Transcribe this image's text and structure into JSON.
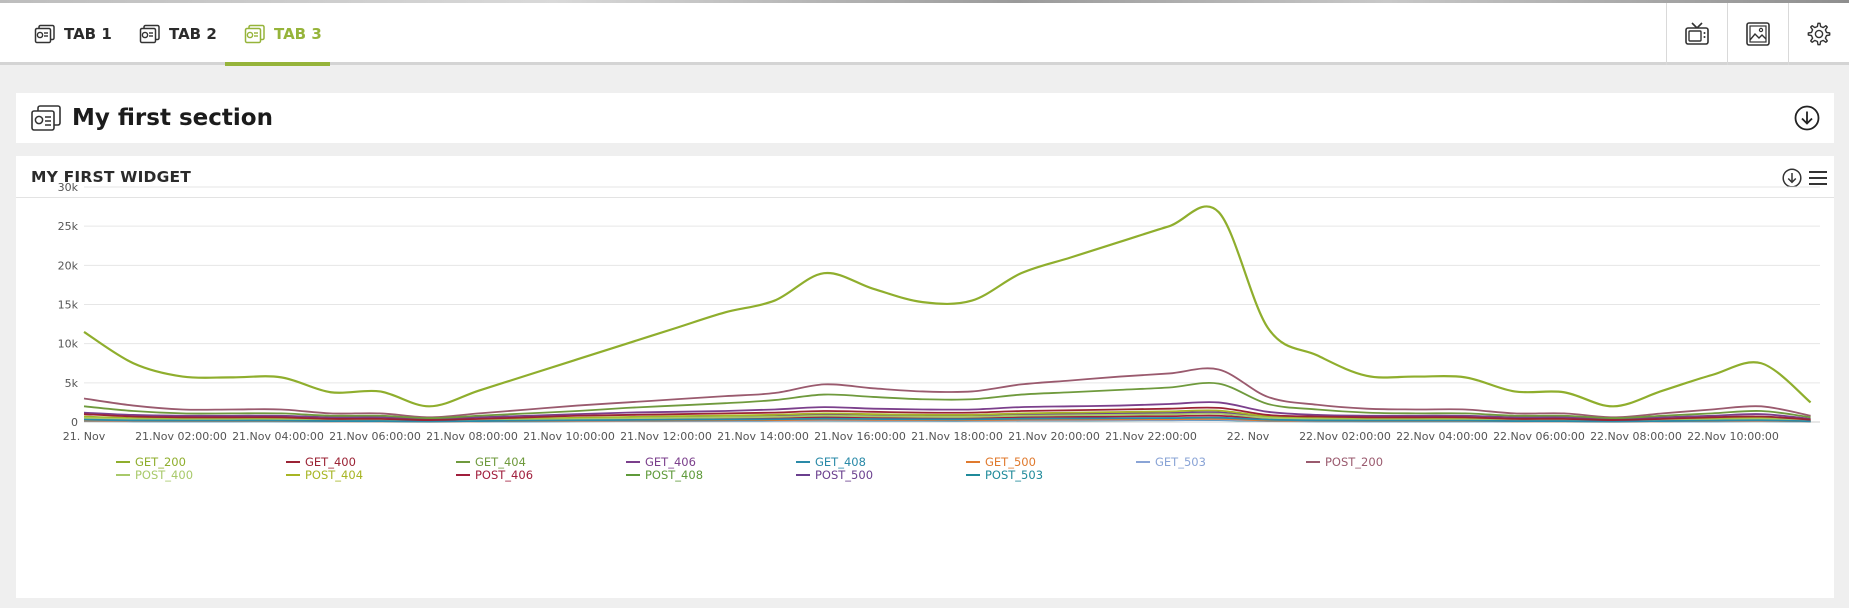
{
  "tabs": [
    {
      "label": "TAB 1",
      "active": false
    },
    {
      "label": "TAB 2",
      "active": false
    },
    {
      "label": "TAB 3",
      "active": true
    }
  ],
  "toolbar_icons": [
    "tv-icon",
    "image-icon",
    "gear-icon"
  ],
  "colors": {
    "accent": "#96b43a"
  },
  "section": {
    "title": "My first section"
  },
  "widget": {
    "title": "MY FIRST WIDGET"
  },
  "chart_data": {
    "type": "line",
    "title": "",
    "xlabel": "",
    "ylabel": "",
    "ylim": [
      0,
      30000
    ],
    "y_ticks": [
      0,
      5000,
      10000,
      15000,
      20000,
      25000,
      30000
    ],
    "y_tick_labels": [
      "0",
      "5k",
      "10k",
      "15k",
      "20k",
      "25k",
      "30k"
    ],
    "x_tick_labels": [
      "21. Nov",
      "21.Nov 02:00:00",
      "21.Nov 04:00:00",
      "21.Nov 06:00:00",
      "21.Nov 08:00:00",
      "21.Nov 10:00:00",
      "21.Nov 12:00:00",
      "21.Nov 14:00:00",
      "21.Nov 16:00:00",
      "21.Nov 18:00:00",
      "21.Nov 20:00:00",
      "21.Nov 22:00:00",
      "22. Nov",
      "22.Nov 02:00:00",
      "22.Nov 04:00:00",
      "22.Nov 06:00:00",
      "22.Nov 08:00:00",
      "22.Nov 10:00:00"
    ],
    "grid": true,
    "legend_position": "bottom",
    "x_hours": [
      0,
      1,
      2,
      3,
      4,
      5,
      6,
      7,
      8,
      9,
      10,
      11,
      12,
      13,
      14,
      15,
      16,
      17,
      18,
      19,
      20,
      21,
      22,
      23,
      24,
      25,
      26,
      27,
      28,
      29,
      30,
      31,
      32,
      33,
      34,
      35
    ],
    "series": [
      {
        "name": "GET_200",
        "color": "#8fae2d",
        "values": [
          11500,
          7500,
          5800,
          5700,
          5700,
          3800,
          3900,
          2000,
          4000,
          6000,
          8000,
          10000,
          12000,
          14000,
          15500,
          19000,
          17000,
          15300,
          15500,
          19000,
          21000,
          23000,
          25000,
          26800,
          12000,
          8500,
          5900,
          5800,
          5700,
          3900,
          3800,
          2000,
          4000,
          6000,
          7500,
          2500
        ]
      },
      {
        "name": "GET_400",
        "color": "#9b2335",
        "values": [
          1000,
          700,
          600,
          600,
          600,
          400,
          400,
          250,
          400,
          600,
          800,
          900,
          1000,
          1100,
          1200,
          1400,
          1300,
          1200,
          1200,
          1400,
          1500,
          1600,
          1700,
          1800,
          900,
          700,
          600,
          600,
          600,
          400,
          400,
          250,
          400,
          600,
          700,
          300
        ]
      },
      {
        "name": "GET_404",
        "color": "#6f9a3d",
        "values": [
          2000,
          1400,
          1100,
          1100,
          1100,
          800,
          800,
          500,
          800,
          1100,
          1400,
          1800,
          2100,
          2400,
          2800,
          3500,
          3200,
          2900,
          2900,
          3500,
          3800,
          4100,
          4400,
          4900,
          2300,
          1600,
          1200,
          1100,
          1100,
          800,
          800,
          500,
          800,
          1100,
          1400,
          600
        ]
      },
      {
        "name": "GET_406",
        "color": "#7b3f8c",
        "values": [
          1200,
          900,
          800,
          800,
          800,
          600,
          600,
          350,
          600,
          800,
          1000,
          1200,
          1300,
          1400,
          1600,
          1900,
          1700,
          1600,
          1600,
          1900,
          2000,
          2100,
          2300,
          2500,
          1300,
          900,
          800,
          800,
          800,
          600,
          600,
          350,
          600,
          800,
          1000,
          400
        ]
      },
      {
        "name": "GET_408",
        "color": "#2a8aa8",
        "values": [
          300,
          200,
          180,
          180,
          180,
          120,
          120,
          80,
          120,
          180,
          220,
          260,
          300,
          320,
          350,
          420,
          380,
          350,
          350,
          420,
          450,
          480,
          500,
          550,
          300,
          200,
          180,
          180,
          180,
          120,
          120,
          80,
          120,
          180,
          220,
          100
        ]
      },
      {
        "name": "GET_500",
        "color": "#e07a2e",
        "values": [
          200,
          150,
          130,
          130,
          130,
          90,
          90,
          60,
          90,
          130,
          160,
          190,
          210,
          230,
          250,
          300,
          280,
          260,
          260,
          300,
          320,
          340,
          360,
          400,
          200,
          150,
          130,
          130,
          130,
          90,
          90,
          60,
          90,
          130,
          160,
          80
        ]
      },
      {
        "name": "GET_503",
        "color": "#8aa4d6",
        "values": [
          150,
          100,
          90,
          90,
          90,
          60,
          60,
          40,
          60,
          90,
          110,
          130,
          150,
          160,
          180,
          220,
          200,
          190,
          190,
          220,
          230,
          250,
          260,
          290,
          150,
          100,
          90,
          90,
          90,
          60,
          60,
          40,
          60,
          90,
          110,
          50
        ]
      },
      {
        "name": "POST_200",
        "color": "#9a5a6e",
        "values": [
          3000,
          2100,
          1600,
          1600,
          1600,
          1100,
          1100,
          600,
          1100,
          1600,
          2100,
          2500,
          2900,
          3300,
          3700,
          4800,
          4300,
          3900,
          3900,
          4800,
          5300,
          5800,
          6200,
          6700,
          3200,
          2200,
          1700,
          1600,
          1600,
          1100,
          1100,
          600,
          1100,
          1600,
          2000,
          800
        ]
      },
      {
        "name": "POST_400",
        "color": "#a8c96a",
        "values": [
          500,
          350,
          300,
          300,
          300,
          200,
          200,
          120,
          200,
          300,
          380,
          450,
          520,
          580,
          650,
          800,
          720,
          660,
          660,
          800,
          860,
          920,
          980,
          1050,
          520,
          360,
          300,
          300,
          300,
          200,
          200,
          120,
          200,
          300,
          380,
          160
        ]
      },
      {
        "name": "POST_404",
        "color": "#a7b524",
        "values": [
          700,
          500,
          420,
          420,
          420,
          280,
          280,
          160,
          280,
          420,
          540,
          640,
          740,
          820,
          920,
          1100,
          1000,
          920,
          920,
          1100,
          1200,
          1280,
          1360,
          1450,
          720,
          500,
          420,
          420,
          420,
          280,
          280,
          160,
          280,
          420,
          540,
          220
        ]
      },
      {
        "name": "POST_406",
        "color": "#a01e3c",
        "values": [
          400,
          280,
          240,
          240,
          240,
          160,
          160,
          100,
          160,
          240,
          300,
          360,
          420,
          460,
          520,
          620,
          560,
          520,
          520,
          620,
          660,
          700,
          740,
          800,
          400,
          280,
          240,
          240,
          240,
          160,
          160,
          100,
          160,
          240,
          300,
          130
        ]
      },
      {
        "name": "POST_408",
        "color": "#5f9a3a",
        "values": [
          250,
          180,
          150,
          150,
          150,
          100,
          100,
          60,
          100,
          150,
          190,
          230,
          260,
          290,
          320,
          390,
          350,
          320,
          320,
          390,
          420,
          440,
          470,
          500,
          250,
          180,
          150,
          150,
          150,
          100,
          100,
          60,
          100,
          150,
          190,
          80
        ]
      },
      {
        "name": "POST_500",
        "color": "#6a3f8e",
        "values": [
          600,
          430,
          360,
          360,
          360,
          240,
          240,
          140,
          240,
          360,
          460,
          540,
          620,
          690,
          770,
          940,
          850,
          780,
          780,
          940,
          1010,
          1080,
          1150,
          1230,
          600,
          430,
          360,
          360,
          360,
          240,
          240,
          140,
          240,
          360,
          460,
          190
        ]
      },
      {
        "name": "POST_503",
        "color": "#1f8a9a",
        "values": [
          120,
          90,
          75,
          75,
          75,
          50,
          50,
          30,
          50,
          75,
          95,
          110,
          125,
          140,
          155,
          190,
          170,
          155,
          155,
          190,
          200,
          215,
          230,
          245,
          120,
          90,
          75,
          75,
          75,
          50,
          50,
          30,
          50,
          75,
          95,
          40
        ]
      }
    ]
  }
}
